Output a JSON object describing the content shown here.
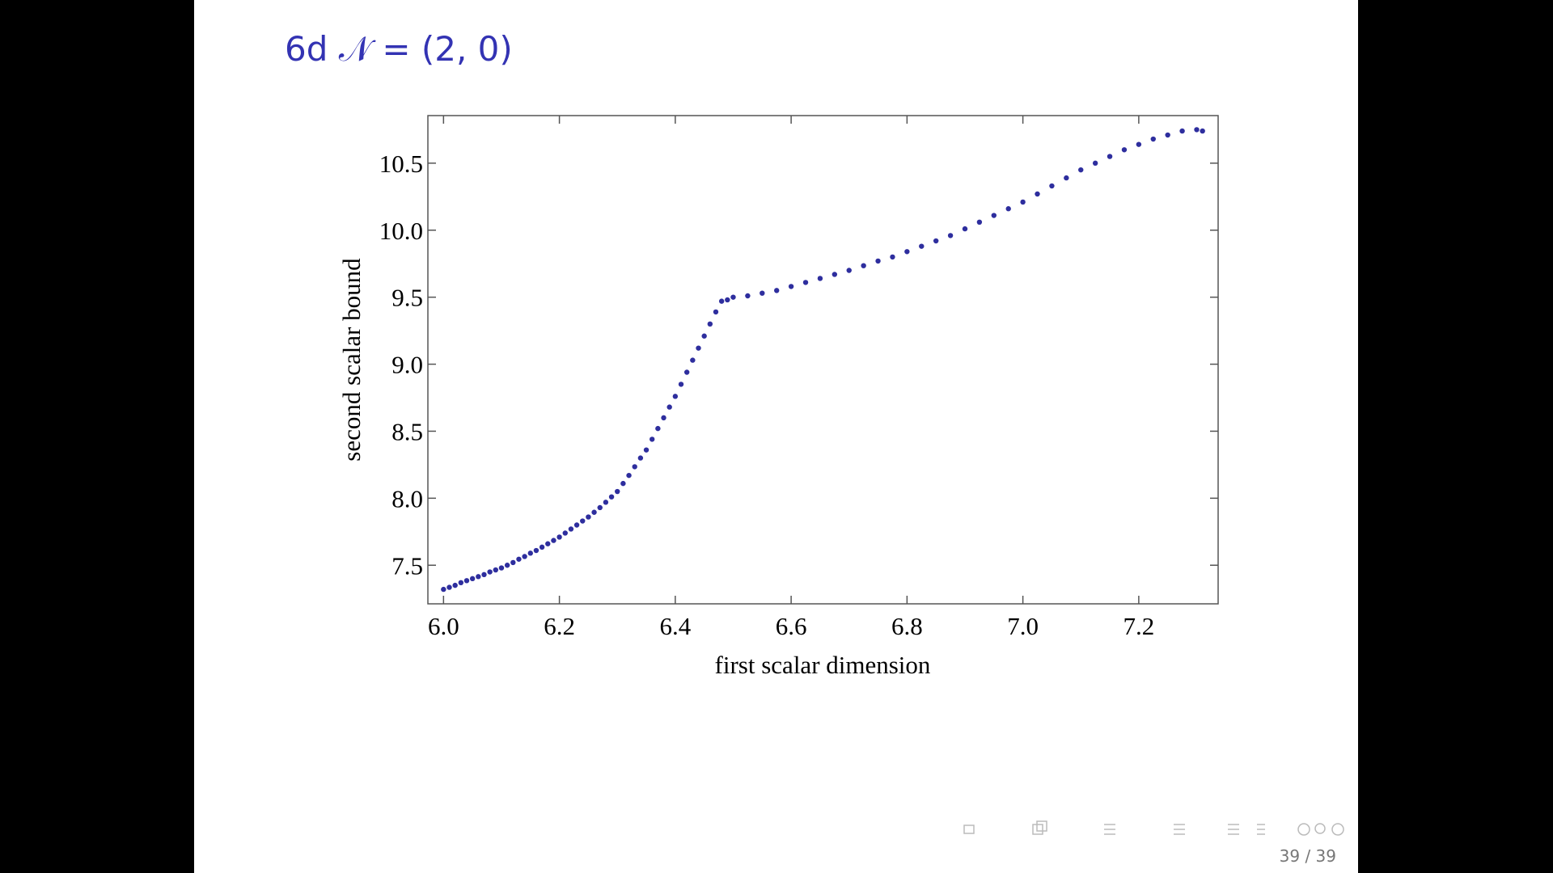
{
  "chart_data": {
    "type": "scatter",
    "title": "6d 𝒩 = (2, 0)",
    "xlabel": "first scalar dimension",
    "ylabel": "second scalar bound",
    "color": "#2e2e9e",
    "x": [
      6.0,
      6.01,
      6.02,
      6.03,
      6.04,
      6.05,
      6.06,
      6.07,
      6.08,
      6.09,
      6.1,
      6.11,
      6.12,
      6.13,
      6.14,
      6.15,
      6.16,
      6.17,
      6.18,
      6.19,
      6.2,
      6.21,
      6.22,
      6.23,
      6.24,
      6.25,
      6.26,
      6.27,
      6.28,
      6.29,
      6.3,
      6.31,
      6.32,
      6.33,
      6.34,
      6.35,
      6.36,
      6.37,
      6.38,
      6.39,
      6.4,
      6.41,
      6.42,
      6.43,
      6.44,
      6.45,
      6.46,
      6.47,
      6.48,
      6.49,
      6.5,
      6.525,
      6.55,
      6.575,
      6.6,
      6.625,
      6.65,
      6.675,
      6.7,
      6.725,
      6.75,
      6.775,
      6.8,
      6.825,
      6.85,
      6.875,
      6.9,
      6.925,
      6.95,
      6.975,
      7.0,
      7.025,
      7.05,
      7.075,
      7.1,
      7.125,
      7.15,
      7.175,
      7.2,
      7.225,
      7.25,
      7.275,
      7.3,
      7.31
    ],
    "y": [
      7.32,
      7.335,
      7.35,
      7.37,
      7.385,
      7.4,
      7.415,
      7.43,
      7.45,
      7.465,
      7.48,
      7.5,
      7.52,
      7.545,
      7.565,
      7.59,
      7.61,
      7.635,
      7.66,
      7.685,
      7.71,
      7.74,
      7.77,
      7.8,
      7.83,
      7.86,
      7.895,
      7.93,
      7.97,
      8.01,
      8.05,
      8.11,
      8.17,
      8.235,
      8.3,
      8.36,
      8.44,
      8.52,
      8.6,
      8.68,
      8.76,
      8.85,
      8.94,
      9.03,
      9.12,
      9.21,
      9.3,
      9.39,
      9.47,
      9.48,
      9.5,
      9.51,
      9.53,
      9.55,
      9.58,
      9.61,
      9.64,
      9.67,
      9.7,
      9.735,
      9.77,
      9.8,
      9.84,
      9.88,
      9.92,
      9.96,
      10.01,
      10.06,
      10.11,
      10.16,
      10.21,
      10.27,
      10.33,
      10.39,
      10.45,
      10.5,
      10.55,
      10.6,
      10.64,
      10.68,
      10.71,
      10.74,
      10.75,
      10.74
    ],
    "xlim": [
      5.973,
      7.337
    ],
    "ylim": [
      7.212,
      10.855
    ],
    "xticks": [
      {
        "value": 6.0,
        "label": "6.0"
      },
      6.2,
      6.4,
      6.6,
      6.8,
      {
        "value": 7.0,
        "label": "7.0"
      },
      7.2
    ],
    "yticks": [
      7.5,
      {
        "value": 8.0,
        "label": "8.0"
      },
      8.5,
      {
        "value": 9.0,
        "label": "9.0"
      },
      9.5,
      {
        "value": 10.0,
        "label": "10.0"
      },
      10.5
    ],
    "page_number": "39 / 39"
  }
}
